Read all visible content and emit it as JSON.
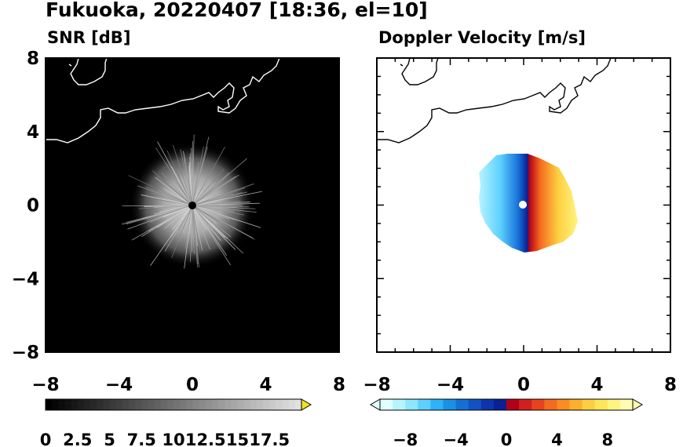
{
  "figure": {
    "title": "Fukuoka, 20220407 [18:36, el=10]"
  },
  "chart_data": [
    {
      "type": "heatmap",
      "title": "SNR [dB]",
      "xlim": [
        -8,
        8
      ],
      "ylim": [
        -8,
        8
      ],
      "xticks": [
        "−8",
        "−4",
        "0",
        "4",
        "8"
      ],
      "yticks": [
        "8",
        "4",
        "0",
        "−4",
        "−8"
      ],
      "background_color": "#000000",
      "coastline_color": "#ffffff",
      "echo": {
        "center": [
          0,
          0
        ],
        "radius": 3.0,
        "color": "#cfcfcf"
      },
      "colorbar": {
        "ticks": [
          "0",
          "2.5",
          "5",
          "7.5",
          "10",
          "12.5",
          "15",
          "17.5"
        ],
        "range": [
          0,
          20
        ],
        "extend": "max",
        "over_color": "#f0e020"
      }
    },
    {
      "type": "heatmap",
      "title": "Doppler Velocity [m/s]",
      "xlim": [
        -8,
        8
      ],
      "ylim": [
        -8,
        8
      ],
      "xticks": [
        "−8",
        "−4",
        "0",
        "4",
        "8"
      ],
      "yticks": [
        "8",
        "4",
        "0",
        "−4",
        "−8"
      ],
      "background_color": "#ffffff",
      "coastline_color": "#000000",
      "echo": {
        "center": [
          0,
          0
        ],
        "radius": 2.4
      },
      "colorbar": {
        "ticks": [
          "−8",
          "−4",
          "0",
          "4",
          "8"
        ],
        "range": [
          -10,
          10
        ],
        "extend": "both",
        "colors": [
          "#e0ffff",
          "#b8f4ff",
          "#8ee6ff",
          "#5ccfff",
          "#2fb2f7",
          "#1a90e6",
          "#1570d6",
          "#1252c4",
          "#0d36ad",
          "#0a2094",
          "#b2001a",
          "#d21f1f",
          "#e8431e",
          "#f56a1f",
          "#f98d22",
          "#fbaf2d",
          "#fdcf40",
          "#fee65b",
          "#fff47f",
          "#fffbb0"
        ]
      }
    }
  ]
}
